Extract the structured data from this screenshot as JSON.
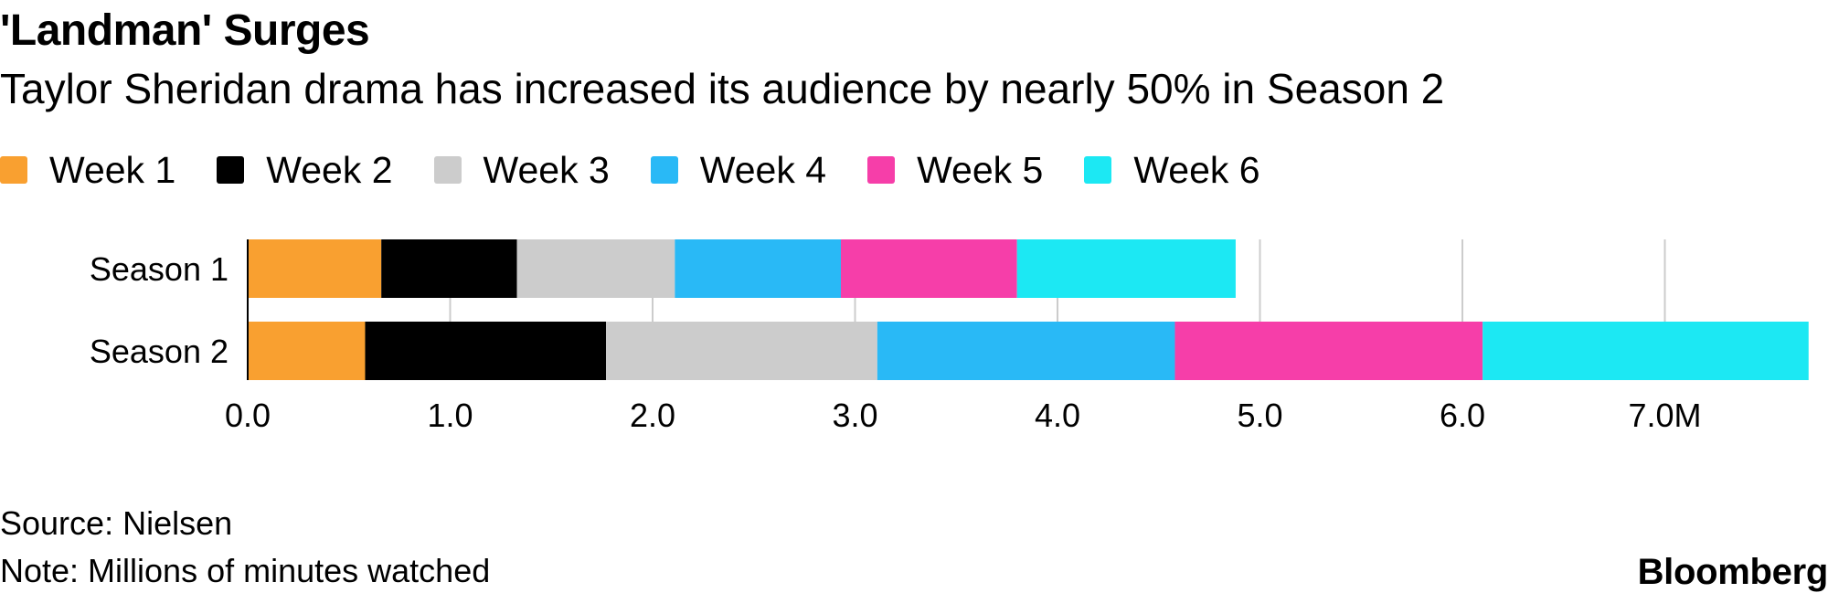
{
  "header": {
    "title": "'Landman' Surges",
    "subtitle": "Taylor Sheridan drama has increased its audience by nearly 50% in Season 2"
  },
  "footer": {
    "source": "Source: Nielsen",
    "note": "Note: Millions of minutes watched",
    "brand": "Bloomberg"
  },
  "chart_data": {
    "type": "bar",
    "orientation": "horizontal",
    "stacked": true,
    "categories": [
      "Season 1",
      "Season 2"
    ],
    "series": [
      {
        "name": "Week 1",
        "color": "#f9a030",
        "values": [
          0.66,
          0.58
        ]
      },
      {
        "name": "Week 2",
        "color": "#000000",
        "values": [
          0.67,
          1.19
        ]
      },
      {
        "name": "Week 3",
        "color": "#cccccc",
        "values": [
          0.78,
          1.34
        ]
      },
      {
        "name": "Week 4",
        "color": "#29b9f6",
        "values": [
          0.82,
          1.47
        ]
      },
      {
        "name": "Week 5",
        "color": "#f63ea9",
        "values": [
          0.87,
          1.52
        ]
      },
      {
        "name": "Week 6",
        "color": "#1ce8f3",
        "values": [
          1.08,
          1.61
        ]
      }
    ],
    "xaxis": {
      "min": 0,
      "max": 7.7,
      "ticks": [
        0,
        1,
        2,
        3,
        4,
        5,
        6,
        7
      ],
      "tick_labels": [
        "0.0",
        "1.0",
        "2.0",
        "3.0",
        "4.0",
        "5.0",
        "6.0",
        "7.0M"
      ]
    },
    "grid": true,
    "legend": "top-left"
  }
}
